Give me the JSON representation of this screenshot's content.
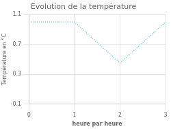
{
  "chart_data": {
    "type": "line",
    "title": "Evolution de la température",
    "xlabel": "heure par heure",
    "ylabel": "Température en °C",
    "x": [
      0,
      1,
      2,
      3
    ],
    "values": [
      1.0,
      1.0,
      0.45,
      1.0
    ],
    "color": "#66ccee",
    "line_style": "dotted",
    "xlim": [
      0,
      3
    ],
    "ylim": [
      -0.1,
      1.1
    ],
    "xticks": [
      0,
      1,
      2,
      3
    ],
    "yticks": [
      -0.1,
      0.3,
      0.7,
      1.1
    ],
    "grid": true
  }
}
